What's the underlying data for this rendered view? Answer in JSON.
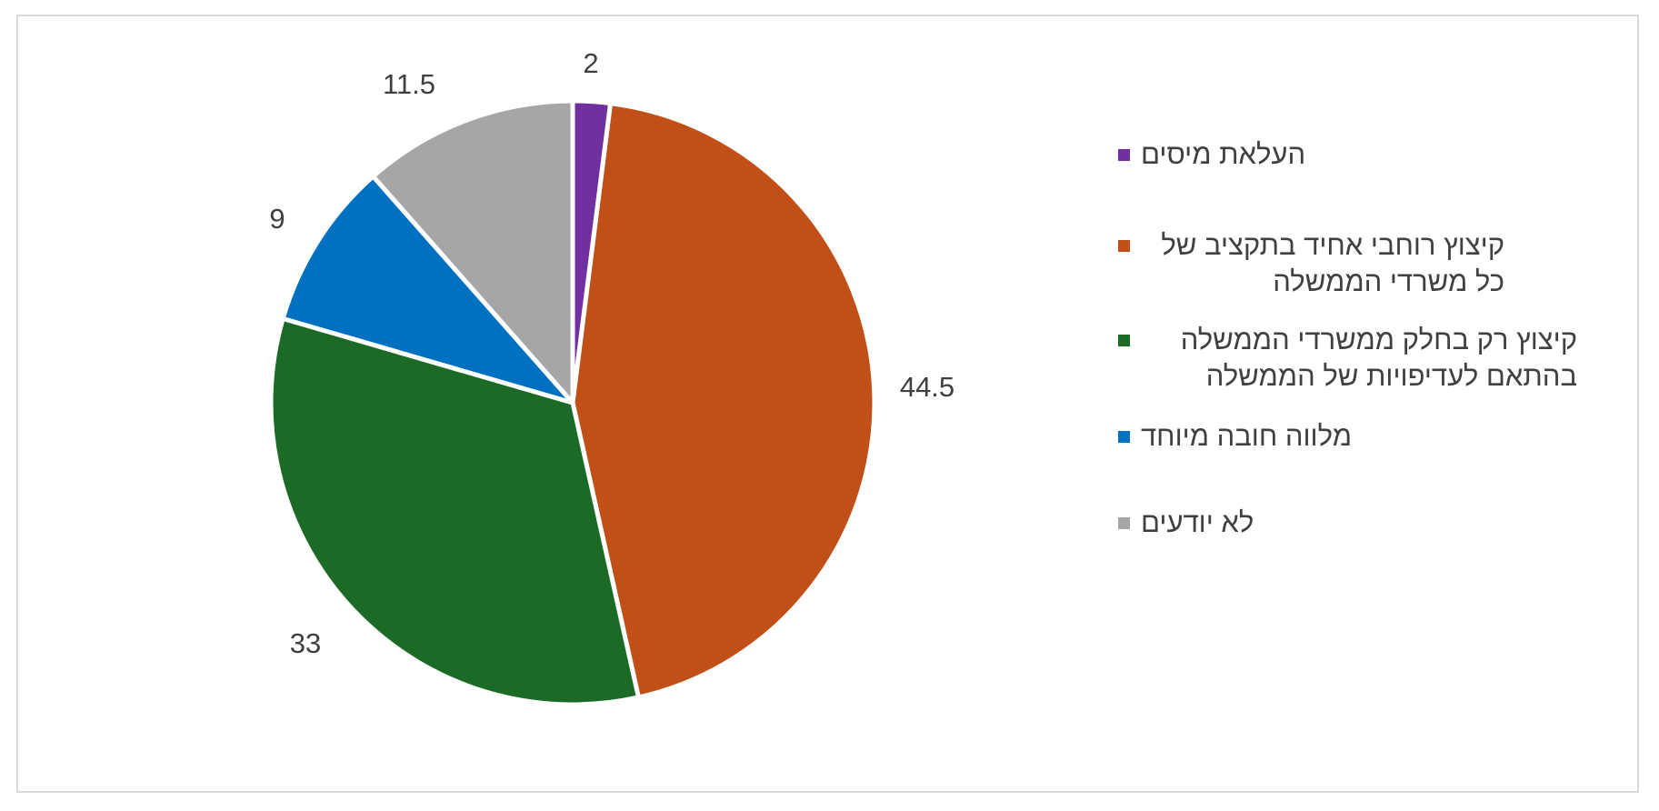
{
  "chart_data": {
    "type": "pie",
    "title": "",
    "start_angle_deg": 0,
    "direction": "clockwise",
    "slices": [
      {
        "label": "העלאת מיסים",
        "value": 2,
        "color": "#7030a0"
      },
      {
        "label": "קיצוץ רוחבי אחיד בתקציב של כל משרדי הממשלה",
        "value": 44.5,
        "color": "#c05017"
      },
      {
        "label": "קיצוץ רק בחלק ממשרדי הממשלה בהתאם לעדיפויות של הממשלה",
        "value": 33,
        "color": "#1b6b26"
      },
      {
        "label": "מלווה חובה מיוחד",
        "value": 9,
        "color": "#0070c0"
      },
      {
        "label": "לא יודעים",
        "value": 11.5,
        "color": "#a6a6a6"
      }
    ],
    "data_labels": [
      "2",
      "44.5",
      "33",
      "9",
      "11.5"
    ],
    "legend": {
      "position": "right"
    }
  }
}
